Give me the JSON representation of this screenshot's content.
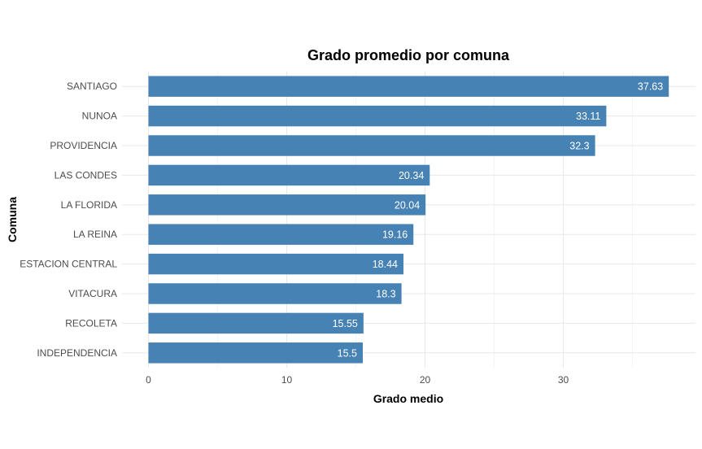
{
  "chart_data": {
    "type": "bar",
    "orientation": "horizontal",
    "title": "Grado promedio por comuna",
    "xlabel": "Grado medio",
    "ylabel": "Comuna",
    "categories": [
      "SANTIAGO",
      "NUNOA",
      "PROVIDENCIA",
      "LAS CONDES",
      "LA FLORIDA",
      "LA REINA",
      "ESTACION CENTRAL",
      "VITACURA",
      "RECOLETA",
      "INDEPENDENCIA"
    ],
    "values": [
      37.63,
      33.11,
      32.3,
      20.34,
      20.04,
      19.16,
      18.44,
      18.3,
      15.55,
      15.5
    ],
    "value_labels": [
      "37.63",
      "33.11",
      "32.3",
      "20.34",
      "20.04",
      "19.16",
      "18.44",
      "18.3",
      "15.55",
      "15.5"
    ],
    "xlim": [
      -1.88,
      39.5
    ],
    "xticks": [
      0,
      10,
      20,
      30
    ],
    "grid": true,
    "legend": "none",
    "bar_color": "#4682B4"
  }
}
